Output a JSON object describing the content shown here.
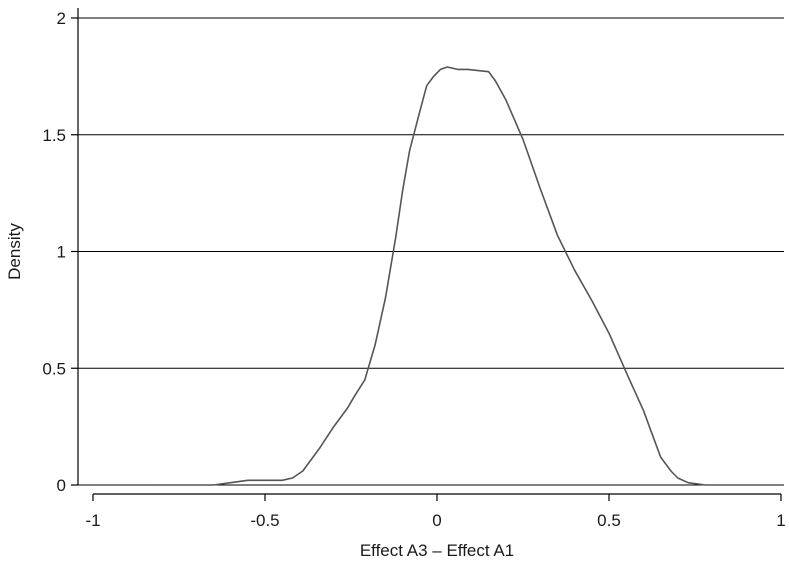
{
  "chart_data": {
    "type": "line",
    "title": "",
    "xlabel": "Effect A3 – Effect A1",
    "ylabel": "Density",
    "xlim": [
      -1,
      1
    ],
    "ylim": [
      0,
      2
    ],
    "x_ticks": [
      -1,
      -0.5,
      0,
      0.5,
      1
    ],
    "x_tick_labels": [
      "-1",
      "-0.5",
      "0",
      "0.5",
      "1"
    ],
    "y_ticks": [
      0,
      0.5,
      1,
      1.5,
      2
    ],
    "y_tick_labels": [
      "0",
      "0.5",
      "1",
      "1.5",
      "2"
    ],
    "grid": "horizontal",
    "legend": "none",
    "colors": {
      "line": "#555555",
      "grid": "#000000",
      "axis": "#000000"
    },
    "series": [
      {
        "x": [
          -0.83,
          -0.7,
          -0.65,
          -0.6,
          -0.55,
          -0.52,
          -0.49,
          -0.47,
          -0.45,
          -0.42,
          -0.39,
          -0.37,
          -0.34,
          -0.3,
          -0.26,
          -0.24,
          -0.21,
          -0.18,
          -0.15,
          -0.12,
          -0.1,
          -0.08,
          -0.05,
          -0.03,
          -0.01,
          0.01,
          0.03,
          0.06,
          0.09,
          0.15,
          0.17,
          0.2,
          0.25,
          0.3,
          0.35,
          0.4,
          0.45,
          0.5,
          0.53,
          0.56,
          0.6,
          0.63,
          0.65,
          0.68,
          0.7,
          0.73,
          0.78
        ],
        "y": [
          0.0,
          0.0,
          0.0,
          0.01,
          0.02,
          0.02,
          0.02,
          0.02,
          0.02,
          0.03,
          0.06,
          0.1,
          0.16,
          0.25,
          0.33,
          0.38,
          0.45,
          0.6,
          0.8,
          1.06,
          1.26,
          1.43,
          1.6,
          1.71,
          1.75,
          1.78,
          1.79,
          1.78,
          1.78,
          1.77,
          1.73,
          1.65,
          1.48,
          1.27,
          1.07,
          0.92,
          0.79,
          0.65,
          0.55,
          0.45,
          0.32,
          0.2,
          0.12,
          0.06,
          0.03,
          0.01,
          0.0
        ]
      }
    ]
  }
}
